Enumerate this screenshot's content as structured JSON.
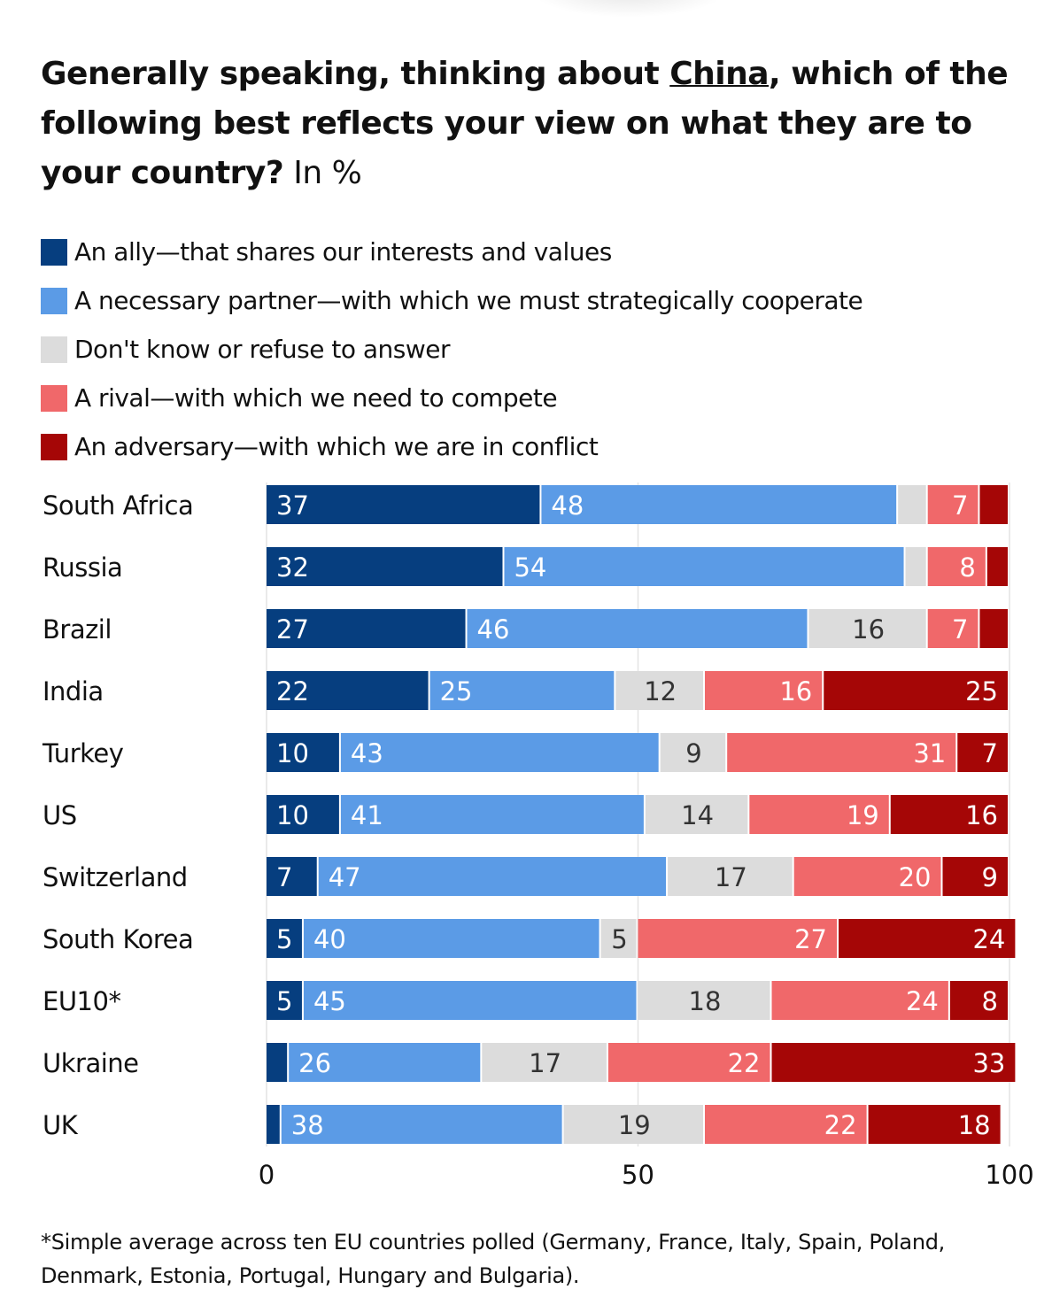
{
  "title": {
    "part1": "Generally speaking, thinking about ",
    "underlined": "China",
    "part2": ", which of the following best reflects your view on what they are to your country?",
    "unit": " In %"
  },
  "colors": {
    "ally": "#063e7f",
    "partner": "#5b9be6",
    "dk": "#dcdcdc",
    "rival": "#f0686a",
    "adversary": "#a50606"
  },
  "chart_data": {
    "type": "bar",
    "orientation": "horizontal-stacked",
    "categories": [
      "South Africa",
      "Russia",
      "Brazil",
      "India",
      "Turkey",
      "US",
      "Switzerland",
      "South Korea",
      "EU10*",
      "Ukraine",
      "UK"
    ],
    "series": [
      {
        "key": "ally",
        "name": "An ally—that shares our interests and values",
        "values": [
          37,
          32,
          27,
          22,
          10,
          10,
          7,
          5,
          5,
          3,
          2
        ]
      },
      {
        "key": "partner",
        "name": "A necessary partner—with which we must strategically cooperate",
        "values": [
          48,
          54,
          46,
          25,
          43,
          41,
          47,
          40,
          45,
          26,
          38
        ]
      },
      {
        "key": "dk",
        "name": "Don't know or refuse to answer",
        "values": [
          4,
          3,
          16,
          12,
          9,
          14,
          17,
          5,
          18,
          17,
          19
        ]
      },
      {
        "key": "rival",
        "name": "A rival—with which we need to compete",
        "values": [
          7,
          8,
          7,
          16,
          31,
          19,
          20,
          27,
          24,
          22,
          22
        ]
      },
      {
        "key": "adversary",
        "name": "An adversary—with which we are in conflict",
        "values": [
          4,
          3,
          4,
          25,
          7,
          16,
          9,
          24,
          8,
          33,
          18
        ]
      }
    ],
    "xlim": [
      0,
      100
    ],
    "xticks": [
      "0",
      "50",
      "100"
    ],
    "grid": true,
    "legend": "top"
  },
  "footnote": "*Simple average across ten EU countries polled (Germany, France, Italy, Spain, Poland, Denmark, Estonia, Portugal, Hungary and Bulgaria)."
}
